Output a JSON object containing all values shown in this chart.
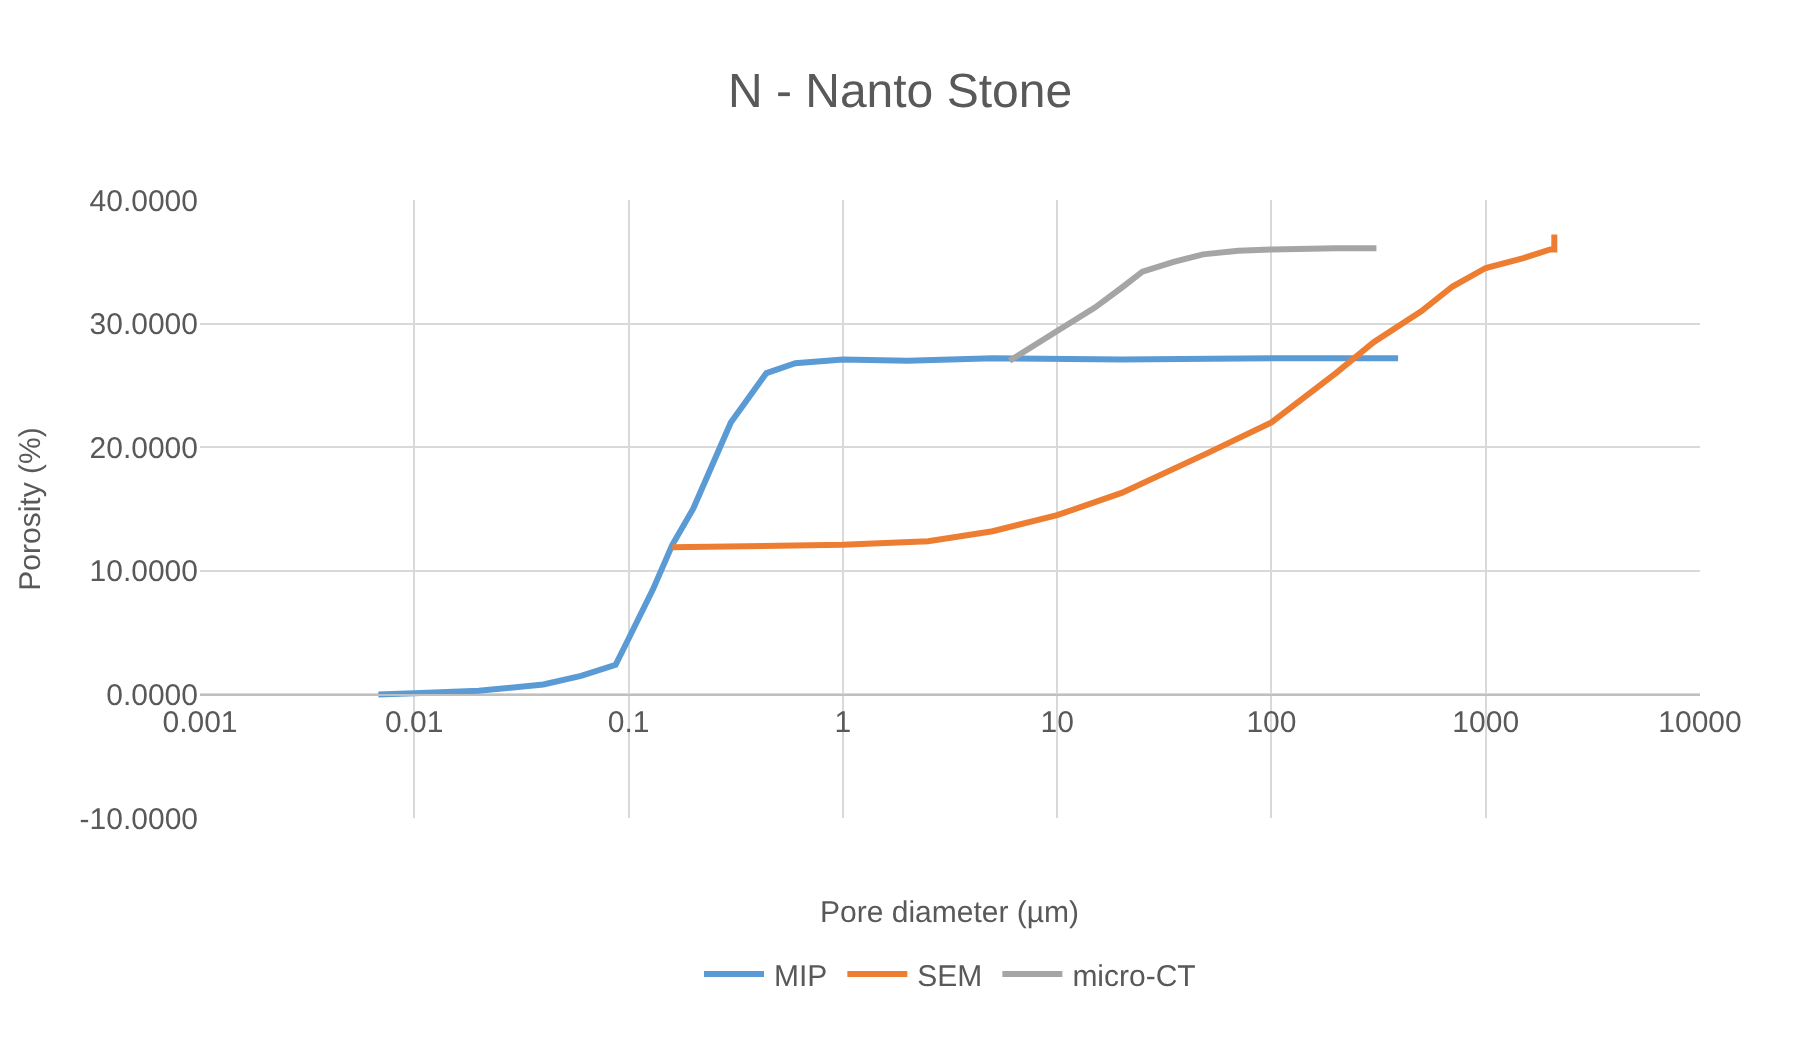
{
  "chart_data": {
    "type": "line",
    "title": "N - Nanto Stone",
    "xlabel": "Pore diameter (µm)",
    "ylabel": "Porosity (%)",
    "log": "x",
    "xlim": [
      0.001,
      10000
    ],
    "xticks": [
      0.001,
      0.01,
      0.1,
      1,
      10,
      100,
      1000,
      10000
    ],
    "ylim": [
      -10,
      40
    ],
    "yticks": [
      {
        "value": -10,
        "label": "-10.0000"
      },
      {
        "value": 0,
        "label": "0.0000"
      },
      {
        "value": 10,
        "label": "10.0000"
      },
      {
        "value": 20,
        "label": "20.0000"
      },
      {
        "value": 30,
        "label": "30.0000"
      },
      {
        "value": 40,
        "label": "40.0000"
      }
    ],
    "grid": true,
    "legend": "bottom",
    "marker": "none",
    "line_style": "solid",
    "series": [
      {
        "name": "MIP",
        "color": "#5b9bd5",
        "x": [
          0.0068,
          0.01,
          0.02,
          0.04,
          0.06,
          0.087,
          0.1,
          0.13,
          0.16,
          0.2,
          0.3,
          0.44,
          0.6,
          1,
          2,
          5,
          20,
          100,
          390
        ],
        "values": [
          0,
          0.1,
          0.3,
          0.8,
          1.5,
          2.4,
          4.5,
          8.5,
          12.1,
          15,
          22,
          26,
          26.8,
          27.1,
          27.0,
          27.2,
          27.1,
          27.2,
          27.2
        ]
      },
      {
        "name": "SEM",
        "color": "#ed7d31",
        "x": [
          0.16,
          1,
          2.5,
          5,
          10,
          20,
          50,
          100,
          200,
          300,
          500,
          700,
          1000,
          1500,
          2000,
          2090,
          2090
        ],
        "values": [
          11.9,
          12.1,
          12.4,
          13.2,
          14.5,
          16.3,
          19.5,
          22.0,
          26,
          28.5,
          31,
          33,
          34.5,
          35.3,
          36,
          36,
          37.2
        ]
      },
      {
        "name": "micro-CT",
        "color": "#a5a5a5",
        "x": [
          6.0,
          10,
          15,
          20,
          25,
          35,
          48,
          70,
          100,
          200,
          309
        ],
        "values": [
          27,
          29.4,
          31.3,
          32.9,
          34.2,
          35.0,
          35.6,
          35.9,
          36.0,
          36.1,
          36.1
        ]
      }
    ]
  }
}
